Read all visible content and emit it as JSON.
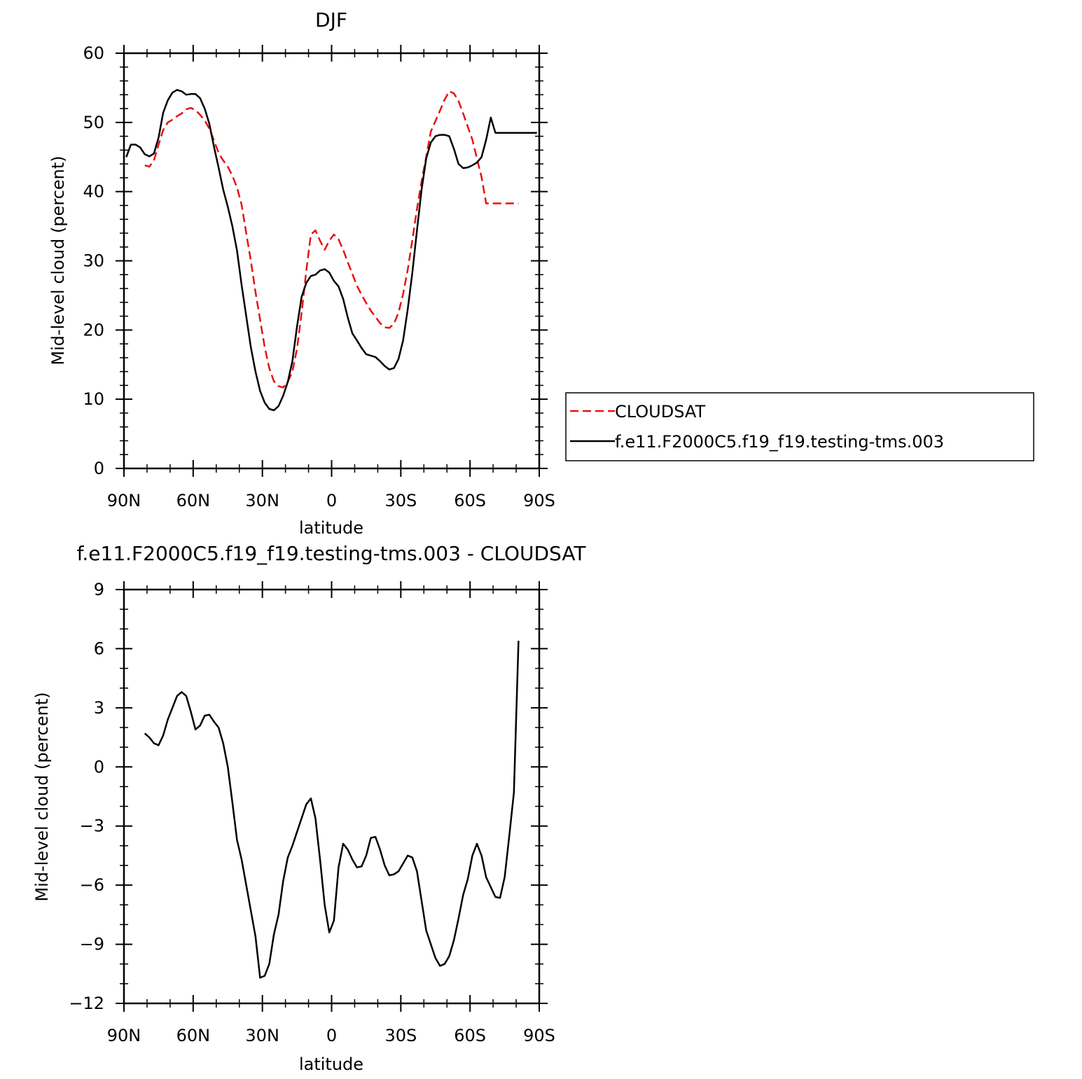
{
  "chart_data": [
    {
      "type": "line",
      "title": "DJF",
      "xlabel": "latitude",
      "ylabel": "Mid-level cloud (percent)",
      "xlim": [
        -90,
        90
      ],
      "ylim": [
        0,
        60
      ],
      "x_tick_labels": [
        {
          "value": -90,
          "label": "90N"
        },
        {
          "value": -60,
          "label": "60N"
        },
        {
          "value": -30,
          "label": "30N"
        },
        {
          "value": 0,
          "label": "0"
        },
        {
          "value": 30,
          "label": "30S"
        },
        {
          "value": 60,
          "label": "60S"
        },
        {
          "value": 90,
          "label": "90S"
        }
      ],
      "y_ticks": [
        0,
        10,
        20,
        30,
        40,
        50,
        60
      ],
      "y_minor_step": 2,
      "x_minor_step": 10,
      "legend": {
        "placement": "right",
        "entries": [
          {
            "label": "CLOUDSAT",
            "color": "#e8110f",
            "dash": "dashed"
          },
          {
            "label": "f.e11.F2000C5.f19_f19.testing-tms.003",
            "color": "#000000",
            "dash": "solid"
          }
        ]
      },
      "series": [
        {
          "name": "CLOUDSAT",
          "color": "#e8110f",
          "dash": "dashed",
          "x": [
            -81,
            -79,
            -77,
            -75,
            -73,
            -71,
            -69,
            -67,
            -65,
            -63,
            -61,
            -59,
            -57,
            -55,
            -53,
            -51,
            -49,
            -47,
            -45,
            -43,
            -41,
            -39,
            -37,
            -35,
            -33,
            -31,
            -29,
            -27,
            -25,
            -23,
            -21,
            -19,
            -17,
            -15,
            -13,
            -11,
            -9,
            -7,
            -5,
            -3,
            -1,
            1,
            3,
            5,
            7,
            9,
            11,
            13,
            15,
            17,
            19,
            21,
            23,
            25,
            27,
            29,
            31,
            33,
            35,
            37,
            39,
            41,
            43,
            45,
            47,
            49,
            51,
            53,
            55,
            57,
            59,
            61,
            63,
            65,
            67,
            69,
            71,
            73,
            75,
            77,
            79,
            81
          ],
          "y": [
            43.8,
            43.6,
            44.5,
            46.8,
            48.9,
            50,
            50.4,
            50.9,
            51.3,
            51.9,
            52.1,
            51.8,
            51.1,
            50.3,
            49.1,
            47.4,
            45.6,
            44.5,
            43.6,
            42.3,
            40.6,
            38.1,
            34,
            30,
            25.5,
            21.5,
            17.5,
            14.5,
            12.6,
            11.9,
            11.7,
            12.5,
            14,
            17.3,
            22.5,
            28.5,
            33.8,
            34.4,
            32.9,
            31.6,
            32.9,
            33.8,
            33.1,
            31.6,
            29.8,
            28.1,
            26.4,
            25.1,
            23.9,
            22.8,
            21.9,
            21,
            20.4,
            20.3,
            20.9,
            22.5,
            25.2,
            28.7,
            33,
            37.5,
            41.5,
            45,
            48.7,
            50.2,
            51.7,
            53.3,
            54.5,
            54.2,
            53.1,
            51.3,
            49.4,
            47.5,
            44.8,
            42.1,
            38.3,
            38.3,
            38.3,
            38.3,
            38.3,
            38.3,
            38.3,
            38.3
          ]
        },
        {
          "name": "f.e11.F2000C5.f19_f19.testing-tms.003",
          "color": "#000000",
          "dash": "solid",
          "x": [
            -89,
            -87,
            -85,
            -83,
            -81,
            -79,
            -77,
            -75,
            -73,
            -71,
            -69,
            -67,
            -65,
            -63,
            -61,
            -59,
            -57,
            -55,
            -53,
            -51,
            -49,
            -47,
            -45,
            -43,
            -41,
            -39,
            -37,
            -35,
            -33,
            -31,
            -29,
            -27,
            -25,
            -23,
            -21,
            -19,
            -17,
            -15,
            -13,
            -11,
            -9,
            -7,
            -5,
            -3,
            -1,
            1,
            3,
            5,
            7,
            9,
            11,
            13,
            15,
            17,
            19,
            21,
            23,
            25,
            27,
            29,
            31,
            33,
            35,
            37,
            39,
            41,
            43,
            45,
            47,
            49,
            51,
            53,
            55,
            57,
            59,
            61,
            63,
            65,
            67,
            69,
            71,
            73,
            75,
            77,
            79,
            81,
            83,
            85,
            87,
            89
          ],
          "y": [
            45,
            46.8,
            46.8,
            46.4,
            45.4,
            45.1,
            45.5,
            47.8,
            51.4,
            53.2,
            54.3,
            54.7,
            54.5,
            54,
            54.1,
            54.1,
            53.5,
            52,
            49.8,
            46.5,
            43.5,
            40.3,
            37.8,
            35,
            31.5,
            26.5,
            22,
            17.5,
            14,
            11.2,
            9.5,
            8.6,
            8.4,
            9,
            10.5,
            12.5,
            15.5,
            20.5,
            24.8,
            26.8,
            27.8,
            28,
            28.6,
            28.8,
            28.3,
            27.1,
            26.3,
            24.5,
            21.8,
            19.5,
            18.5,
            17.4,
            16.5,
            16.3,
            16.1,
            15.5,
            14.8,
            14.3,
            14.5,
            15.8,
            18.5,
            23,
            28.3,
            34.4,
            40.3,
            44.8,
            47.1,
            48,
            48.2,
            48.2,
            48,
            46.2,
            44,
            43.4,
            43.5,
            43.8,
            44.2,
            45,
            47.5,
            50.7,
            48.5,
            48.5,
            48.5,
            48.5,
            48.5,
            48.5,
            48.5,
            48.5,
            48.5,
            48.5
          ]
        }
      ]
    },
    {
      "type": "line",
      "title": "f.e11.F2000C5.f19_f19.testing-tms.003 - CLOUDSAT",
      "xlabel": "latitude",
      "ylabel": "Mid-level cloud (percent)",
      "xlim": [
        -90,
        90
      ],
      "ylim": [
        -12,
        9
      ],
      "x_tick_labels": [
        {
          "value": -90,
          "label": "90N"
        },
        {
          "value": -60,
          "label": "60N"
        },
        {
          "value": -30,
          "label": "30N"
        },
        {
          "value": 0,
          "label": "0"
        },
        {
          "value": 30,
          "label": "30S"
        },
        {
          "value": 60,
          "label": "60S"
        },
        {
          "value": 90,
          "label": "90S"
        }
      ],
      "y_ticks": [
        -12,
        -9,
        -6,
        -3,
        0,
        3,
        6,
        9
      ],
      "y_tick_labels": [
        "−12",
        "−9",
        "−6",
        "−3",
        "0",
        "3",
        "6",
        "9"
      ],
      "y_minor_step": 1,
      "x_minor_step": 10,
      "series": [
        {
          "name": "",
          "color": "#000000",
          "dash": "solid",
          "x": [
            -81,
            -79,
            -77,
            -75,
            -73,
            -71,
            -69,
            -67,
            -65,
            -63,
            -61,
            -59,
            -57,
            -55,
            -53,
            -51,
            -49,
            -47,
            -45,
            -43,
            -41,
            -39,
            -37,
            -35,
            -33,
            -31,
            -29,
            -27,
            -25,
            -23,
            -21,
            -19,
            -17,
            -15,
            -13,
            -11,
            -9,
            -7,
            -5,
            -3,
            -1,
            1,
            3,
            5,
            7,
            9,
            11,
            13,
            15,
            17,
            19,
            21,
            23,
            25,
            27,
            29,
            31,
            33,
            35,
            37,
            39,
            41,
            43,
            45,
            47,
            49,
            51,
            53,
            55,
            57,
            59,
            61,
            63,
            65,
            67,
            69,
            71,
            73,
            75,
            77,
            79,
            81
          ],
          "y": [
            1.7,
            1.5,
            1.2,
            1.1,
            1.6,
            2.4,
            3,
            3.6,
            3.8,
            3.6,
            2.8,
            1.9,
            2.1,
            2.6,
            2.65,
            2.3,
            2,
            1.2,
            0,
            -1.8,
            -3.7,
            -4.7,
            -6,
            -7.3,
            -8.6,
            -10.7,
            -10.6,
            -10,
            -8.5,
            -7.5,
            -5.8,
            -4.6,
            -4,
            -3.3,
            -2.6,
            -1.9,
            -1.6,
            -2.6,
            -4.7,
            -7,
            -8.4,
            -7.8,
            -5.1,
            -3.9,
            -4.2,
            -4.7,
            -5.1,
            -5.05,
            -4.5,
            -3.6,
            -3.55,
            -4.2,
            -5,
            -5.5,
            -5.45,
            -5.3,
            -4.9,
            -4.5,
            -4.6,
            -5.3,
            -6.8,
            -8.3,
            -9,
            -9.7,
            -10.1,
            -10,
            -9.6,
            -8.8,
            -7.7,
            -6.5,
            -5.7,
            -4.5,
            -3.9,
            -4.5,
            -5.6,
            -6.1,
            -6.6,
            -6.65,
            -5.6,
            -3.5,
            -1.3,
            6.4
          ]
        }
      ]
    }
  ]
}
